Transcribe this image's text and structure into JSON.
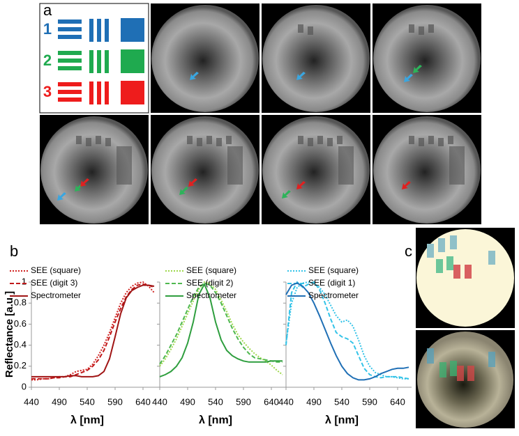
{
  "labels": {
    "panel_a": "a",
    "panel_b": "b",
    "panel_c": "c",
    "targets": [
      "1",
      "2",
      "3"
    ]
  },
  "chart_data": [
    {
      "type": "line",
      "ylabel": "Reflectance [a.u.]",
      "xlabel": "λ [nm]",
      "x": [
        440,
        450,
        460,
        470,
        480,
        490,
        500,
        510,
        520,
        530,
        540,
        550,
        560,
        570,
        580,
        590,
        600,
        610,
        620,
        630,
        640,
        650,
        660
      ],
      "xlim": [
        440,
        665
      ],
      "ylim": [
        0,
        1
      ],
      "xticks": [
        440,
        490,
        540,
        590,
        640
      ],
      "yticks": [
        0,
        0.2,
        0.4,
        0.6,
        0.8,
        1
      ],
      "series": [
        {
          "name": "SEE (square)",
          "color": "#d0201e",
          "dash": "dotted",
          "values": [
            0.07,
            0.07,
            0.08,
            0.08,
            0.09,
            0.1,
            0.1,
            0.12,
            0.15,
            0.16,
            0.17,
            0.22,
            0.3,
            0.4,
            0.52,
            0.66,
            0.8,
            0.9,
            0.96,
            0.99,
            1.0,
            0.96,
            0.9
          ]
        },
        {
          "name": "SEE (digit 3)",
          "color": "#c0181a",
          "dash": "dashed",
          "values": [
            0.08,
            0.08,
            0.08,
            0.08,
            0.09,
            0.09,
            0.1,
            0.1,
            0.12,
            0.14,
            0.16,
            0.2,
            0.26,
            0.35,
            0.48,
            0.62,
            0.75,
            0.86,
            0.93,
            0.97,
            0.98,
            0.97,
            0.95
          ]
        },
        {
          "name": "Spectrometer",
          "color": "#a01414",
          "dash": "solid",
          "values": [
            0.1,
            0.1,
            0.1,
            0.1,
            0.1,
            0.1,
            0.1,
            0.11,
            0.11,
            0.1,
            0.1,
            0.1,
            0.11,
            0.15,
            0.27,
            0.48,
            0.7,
            0.85,
            0.92,
            0.95,
            0.97,
            0.97,
            0.96
          ]
        }
      ]
    },
    {
      "type": "line",
      "xlabel": "λ [nm]",
      "x": [
        440,
        450,
        460,
        470,
        480,
        490,
        500,
        510,
        520,
        530,
        540,
        550,
        560,
        570,
        580,
        590,
        600,
        610,
        620,
        630,
        640,
        650,
        660
      ],
      "xlim": [
        440,
        665
      ],
      "ylim": [
        0,
        1
      ],
      "xticks": [
        440,
        490,
        540,
        590,
        640
      ],
      "yticks": [
        0,
        0.2,
        0.4,
        0.6,
        0.8,
        1
      ],
      "series": [
        {
          "name": "SEE (square)",
          "color": "#9dd84a",
          "dash": "dotted",
          "values": [
            0.2,
            0.27,
            0.36,
            0.46,
            0.58,
            0.7,
            0.82,
            0.93,
            1.0,
            0.99,
            0.93,
            0.83,
            0.72,
            0.6,
            0.5,
            0.43,
            0.37,
            0.32,
            0.28,
            0.25,
            0.21,
            0.16,
            0.12
          ]
        },
        {
          "name": "SEE (digit 2)",
          "color": "#4fb84f",
          "dash": "dashed",
          "values": [
            0.22,
            0.3,
            0.4,
            0.5,
            0.62,
            0.74,
            0.86,
            0.95,
            0.99,
            0.97,
            0.9,
            0.8,
            0.68,
            0.56,
            0.46,
            0.38,
            0.32,
            0.28,
            0.27,
            0.26,
            0.25,
            0.24,
            0.24
          ]
        },
        {
          "name": "Spectrometer",
          "color": "#2e9e3e",
          "dash": "solid",
          "values": [
            0.1,
            0.12,
            0.15,
            0.2,
            0.28,
            0.42,
            0.62,
            0.88,
            0.98,
            0.85,
            0.62,
            0.45,
            0.35,
            0.3,
            0.27,
            0.25,
            0.24,
            0.24,
            0.24,
            0.24,
            0.25,
            0.25,
            0.25
          ]
        }
      ]
    },
    {
      "type": "line",
      "xlabel": "λ [nm]",
      "x": [
        440,
        450,
        460,
        470,
        480,
        490,
        500,
        510,
        520,
        530,
        540,
        550,
        560,
        570,
        580,
        590,
        600,
        610,
        620,
        630,
        640,
        650,
        660
      ],
      "xlim": [
        440,
        665
      ],
      "ylim": [
        0,
        1
      ],
      "xticks": [
        440,
        490,
        540,
        590,
        640
      ],
      "yticks": [
        0,
        0.2,
        0.4,
        0.6,
        0.8,
        1
      ],
      "series": [
        {
          "name": "SEE (square)",
          "color": "#33c3e8",
          "dash": "dotted",
          "values": [
            0.42,
            0.8,
            0.95,
            0.99,
            1.0,
            0.99,
            0.95,
            0.88,
            0.78,
            0.68,
            0.62,
            0.64,
            0.58,
            0.45,
            0.3,
            0.2,
            0.14,
            0.12,
            0.1,
            0.1,
            0.09,
            0.08,
            0.08
          ]
        },
        {
          "name": "SEE (digit 1)",
          "color": "#33c3e8",
          "dash": "dashed",
          "values": [
            0.4,
            0.9,
            1.0,
            0.95,
            0.98,
            1.0,
            0.93,
            0.8,
            0.65,
            0.52,
            0.48,
            0.46,
            0.42,
            0.3,
            0.18,
            0.12,
            0.1,
            0.09,
            0.1,
            0.1,
            0.1,
            0.09,
            0.08
          ]
        },
        {
          "name": "Spectrometer",
          "color": "#1f6fb5",
          "dash": "solid",
          "values": [
            0.88,
            0.97,
            0.99,
            0.96,
            0.9,
            0.8,
            0.68,
            0.55,
            0.42,
            0.3,
            0.2,
            0.13,
            0.09,
            0.07,
            0.07,
            0.08,
            0.1,
            0.13,
            0.15,
            0.17,
            0.18,
            0.18,
            0.19
          ]
        }
      ]
    }
  ]
}
